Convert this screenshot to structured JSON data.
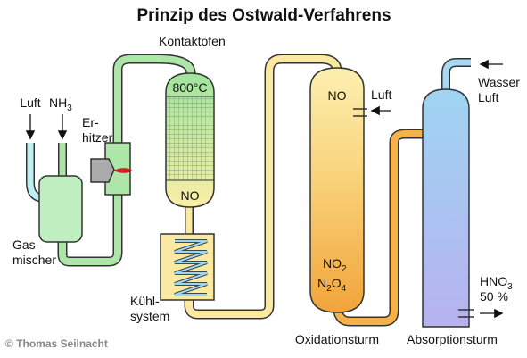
{
  "title": "Prinzip des Ostwald-Verfahrens",
  "labels": {
    "kontaktofen": "Kontaktofen",
    "temperature": "800°C",
    "no_reactor": "NO",
    "erhitzer_line1": "Er-",
    "erhitzer_line2": "hitzer",
    "luft_in": "Luft",
    "nh3_base": "NH",
    "nh3_sub": "3",
    "gasmischer_line1": "Gas-",
    "gasmischer_line2": "mischer",
    "kuehl_line1": "Kühl-",
    "kuehl_line2": "system",
    "no_oxidation": "NO",
    "luft_oxidation": "Luft",
    "no2_base": "NO",
    "no2_sub": "2",
    "n2o4_n": "N",
    "n2o4_sub1": "2",
    "n2o4_o": "O",
    "n2o4_sub2": "4",
    "oxidationsturm": "Oxidationsturm",
    "wasser": "Wasser",
    "luft_absorption": "Luft",
    "hno3_base": "HNO",
    "hno3_sub": "3",
    "hno3_conc": "50 %",
    "absorptionsturm": "Absorptionsturm",
    "copyright": "© Thomas Seilnacht"
  },
  "colors": {
    "green_pipe": "#aee5a8",
    "cyan_pipe": "#bfeff0",
    "yellow_pipe": "#fbe9a2",
    "orange_pipe": "#f6b24a",
    "blue_pipe": "#a9d8f5",
    "outline": "#333333",
    "mixer_fill": "#bfeec0",
    "reactor_top": "#9fe49e",
    "reactor_bottom": "#fbeea6",
    "oxidation_top": "#fbe9a2",
    "oxidation_bottom": "#f2a43a",
    "absorption_top": "#9fd4f2",
    "absorption_bottom": "#b7b2f0",
    "flame": "#e02020",
    "copyright": "#888888"
  }
}
